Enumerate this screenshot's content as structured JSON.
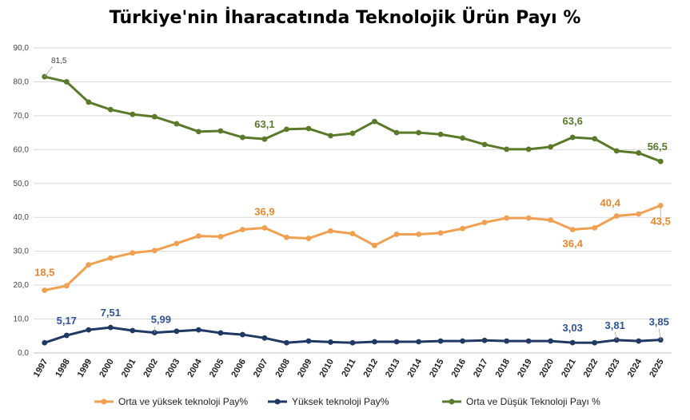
{
  "chart_data": {
    "type": "line",
    "title": "Türkiye'nin İharacatında Teknolojik Ürün Payı %",
    "xlabel": "",
    "ylabel": "",
    "ylim": [
      0,
      90
    ],
    "yticks": [
      "0,0",
      "10,0",
      "20,0",
      "30,0",
      "40,0",
      "50,0",
      "60,0",
      "70,0",
      "80,0",
      "90,0"
    ],
    "categories": [
      "1997",
      "1998",
      "1999",
      "2000",
      "2001",
      "2002",
      "2003",
      "2004",
      "2005",
      "2006",
      "2007",
      "2008",
      "2009",
      "2010",
      "2011",
      "2012",
      "2013",
      "2014",
      "2015",
      "2016",
      "2017",
      "2018",
      "2019",
      "2020",
      "2021",
      "2022",
      "2023",
      "2024",
      "2025"
    ],
    "grid": true,
    "legend_position": "bottom",
    "series": [
      {
        "name": "Orta ve yüksek teknoloji Pay%",
        "color": "#F0A050",
        "label_color": "#E8872A",
        "values": [
          18.5,
          19.8,
          26.0,
          28.0,
          29.5,
          30.2,
          32.3,
          34.5,
          34.3,
          36.4,
          36.9,
          34.1,
          33.8,
          36.0,
          35.2,
          31.7,
          35.0,
          35.0,
          35.4,
          36.7,
          38.5,
          39.8,
          39.8,
          39.2,
          36.4,
          36.9,
          40.4,
          41.0,
          43.5
        ],
        "labels": [
          {
            "index": 0,
            "text": "18,5"
          },
          {
            "index": 10,
            "text": "36,9"
          },
          {
            "index": 24,
            "text": "36,4"
          },
          {
            "index": 26,
            "text": "40,4"
          },
          {
            "index": 28,
            "text": "43,5"
          }
        ]
      },
      {
        "name": "Yüksek teknoloji Pay%",
        "color": "#203864",
        "label_color": "#2F5597",
        "values": [
          3.0,
          5.17,
          6.8,
          7.51,
          6.6,
          5.99,
          6.4,
          6.8,
          5.9,
          5.4,
          4.4,
          3.0,
          3.5,
          3.2,
          3.0,
          3.3,
          3.3,
          3.3,
          3.5,
          3.5,
          3.7,
          3.5,
          3.5,
          3.5,
          3.03,
          3.0,
          3.81,
          3.5,
          3.85
        ],
        "labels": [
          {
            "index": 1,
            "text": "5,17"
          },
          {
            "index": 3,
            "text": "7,51"
          },
          {
            "index": 5,
            "text": "5,99"
          },
          {
            "index": 24,
            "text": "3,03"
          },
          {
            "index": 26,
            "text": "3,81"
          },
          {
            "index": 28,
            "text": "3,85"
          }
        ]
      },
      {
        "name": "Orta ve Düşük Teknoloji Payı %",
        "color": "#5A7A2A",
        "label_color": "#5A7A2A",
        "values": [
          81.5,
          80.0,
          74.0,
          71.8,
          70.4,
          69.7,
          67.6,
          65.3,
          65.5,
          63.6,
          63.1,
          66.0,
          66.2,
          64.1,
          64.8,
          68.3,
          65.0,
          65.0,
          64.5,
          63.4,
          61.5,
          60.1,
          60.1,
          60.8,
          63.6,
          63.2,
          59.6,
          59.0,
          56.5
        ],
        "labels": [
          {
            "index": 0,
            "text": "81,5"
          },
          {
            "index": 10,
            "text": "63,1"
          },
          {
            "index": 24,
            "text": "63,6"
          },
          {
            "index": 28,
            "text": "56,5"
          }
        ]
      }
    ]
  }
}
